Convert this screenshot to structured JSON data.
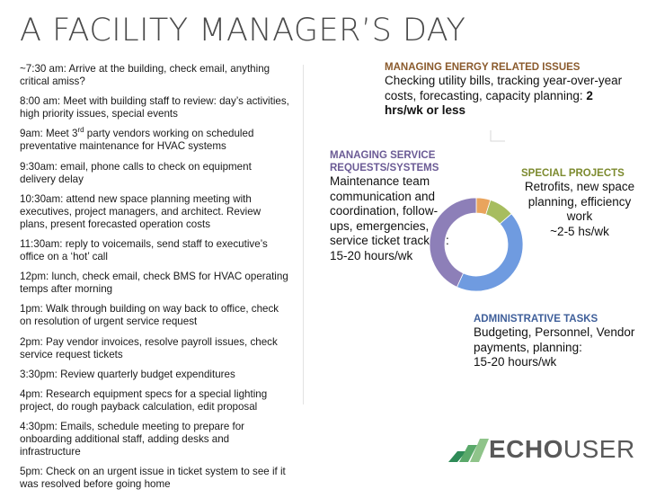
{
  "title": "A FACILITY MANAGER’S DAY",
  "schedule": [
    {
      "text": "~7:30 am: Arrive at the building, check email, anything critical amiss?"
    },
    {
      "text": "8:00 am: Meet with building staff to review: day’s activities, high priority issues, special events"
    },
    {
      "pre": "9am: Meet 3",
      "sup": "rd",
      "post": " party vendors working on scheduled preventative maintenance for HVAC systems"
    },
    {
      "text": "9:30am: email, phone calls to check on equipment delivery delay"
    },
    {
      "text": "10:30am: attend new space planning meeting with executives, project managers, and architect. Review plans, present forecasted operation costs"
    },
    {
      "text": "11:30am: reply to voicemails, send staff to executive’s office on a ‘hot’ call"
    },
    {
      "text": "12pm: lunch, check email, check BMS for HVAC operating temps after morning"
    },
    {
      "text": "1pm: Walk through building on way back to office, check on resolution of urgent service request"
    },
    {
      "text": "2pm: Pay vendor invoices, resolve payroll issues, check service request tickets"
    },
    {
      "text": "3:30pm: Review quarterly budget expenditures"
    },
    {
      "text": "4pm: Research equipment specs for a special lighting project, do rough payback calculation, edit proposal"
    },
    {
      "text": "4:30pm: Emails, schedule meeting to prepare for onboarding additional staff, adding desks and infrastructure"
    },
    {
      "text": "5pm: Check on an urgent issue in ticket system to see if it was resolved before going home"
    }
  ],
  "categories": {
    "energy": {
      "heading": "MANAGING ENERGY RELATED ISSUES",
      "body": "Checking utility bills, tracking year-over-year costs, forecasting, capacity planning: ",
      "highlight": "2 hrs/wk or less"
    },
    "service": {
      "heading": "MANAGING SERVICE REQUESTS/SYSTEMS",
      "body": "Maintenance team communication and coordination, follow-ups, emergencies, service ticket tracking:",
      "highlight": "15-20 hours/wk"
    },
    "projects": {
      "heading": "SPECIAL PROJECTS",
      "body": "Retrofits, new space planning, efficiency work",
      "highlight": "~2-5 hs/wk"
    },
    "admin": {
      "heading": "ADMINISTRATIVE TASKS",
      "body": "Budgeting, Personnel, Vendor payments, planning:",
      "highlight": "15-20 hours/wk"
    }
  },
  "chart_data": {
    "type": "pie",
    "categories": [
      "Managing Energy Related Issues",
      "Special Projects",
      "Administrative Tasks",
      "Managing Service Requests/Systems"
    ],
    "values": [
      2,
      3.5,
      17.5,
      17.5
    ],
    "colors": [
      "#e9a45d",
      "#a7bd5f",
      "#6f9be0",
      "#8d7fb8"
    ]
  },
  "logo": {
    "word1": "ECHO",
    "word2": "USER",
    "colors": [
      "#2e8b57",
      "#5aa96a",
      "#8fc48a"
    ]
  }
}
